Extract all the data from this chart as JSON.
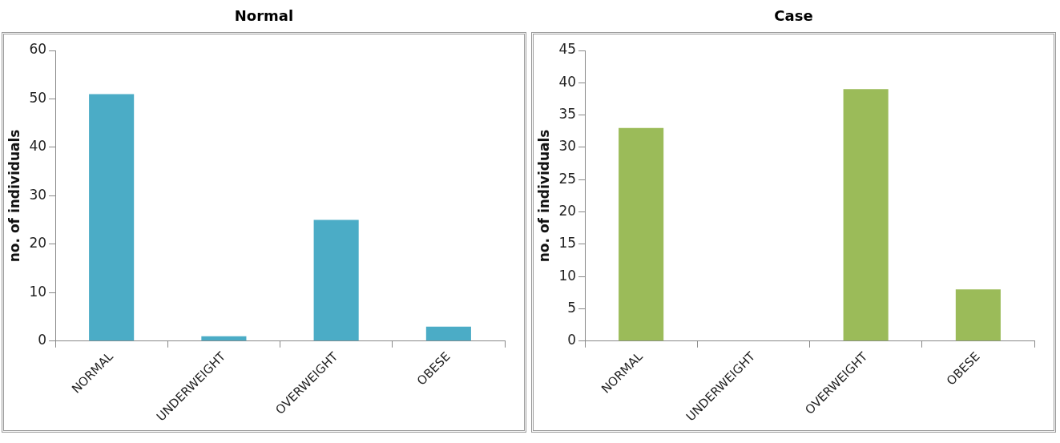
{
  "chart_data": [
    {
      "type": "bar",
      "title": "Normal",
      "ylabel": "no. of individuals",
      "categories": [
        "NORMAL",
        "UNDERWEIGHT",
        "OVERWEIGHT",
        "OBESE"
      ],
      "values": [
        51,
        1,
        25,
        3
      ],
      "color": "#4bacc6",
      "ylim": [
        0,
        60
      ],
      "yticks": [
        0,
        10,
        20,
        30,
        40,
        50,
        60
      ],
      "grid": false,
      "legend": false
    },
    {
      "type": "bar",
      "title": "Case",
      "ylabel": "no. of individuals",
      "categories": [
        "NORMAL",
        "UNDERWEIGHT",
        "OVERWEIGHT",
        "OBESE"
      ],
      "values": [
        33,
        0,
        39,
        8
      ],
      "color": "#9bbb59",
      "ylim": [
        0,
        45
      ],
      "yticks": [
        0,
        5,
        10,
        15,
        20,
        25,
        30,
        35,
        40,
        45
      ],
      "grid": false,
      "legend": false
    }
  ]
}
